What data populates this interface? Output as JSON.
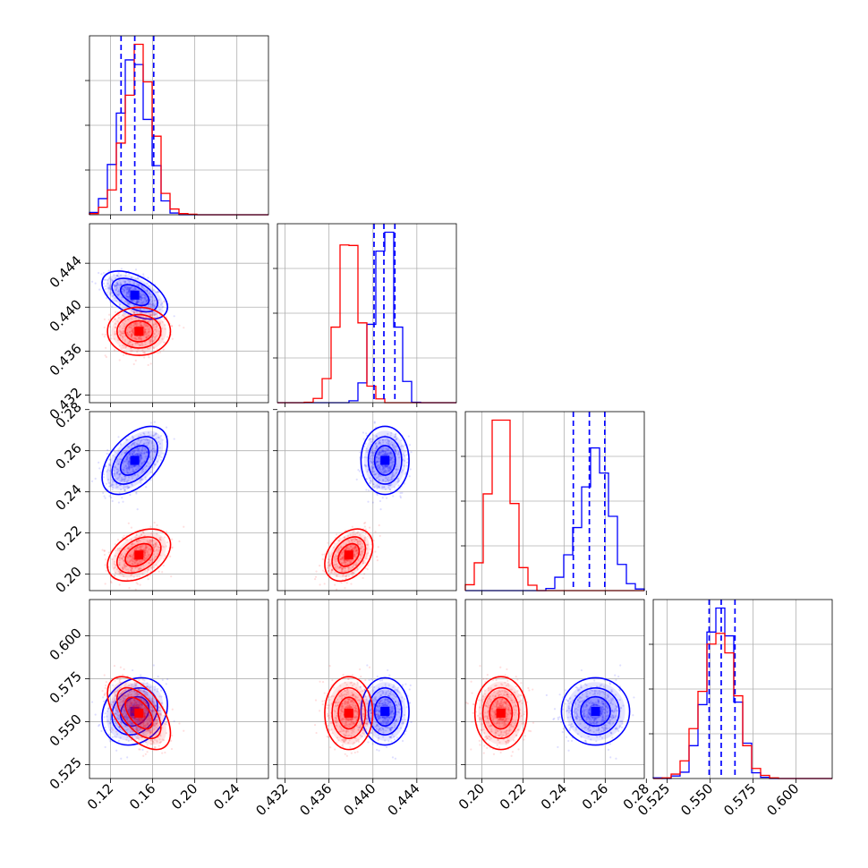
{
  "chart_data": {
    "type": "corner",
    "title": "",
    "grid": true,
    "colors": {
      "blue": "#0000ff",
      "red": "#ff0000"
    },
    "parameters": [
      {
        "range": [
          0.1,
          0.27
        ],
        "ticks": [
          0.12,
          0.16,
          0.2,
          0.24
        ],
        "tick_labels": [
          "0.12",
          "0.16",
          "0.20",
          "0.24"
        ]
      },
      {
        "range": [
          0.4313,
          0.4476
        ],
        "ticks": [
          0.432,
          0.436,
          0.44,
          0.444
        ],
        "tick_labels": [
          "0.432",
          "0.436",
          "0.440",
          "0.444"
        ]
      },
      {
        "range": [
          0.192,
          0.279
        ],
        "ticks": [
          0.2,
          0.22,
          0.24,
          0.26,
          0.28
        ],
        "tick_labels": [
          "0.20",
          "0.22",
          "0.24",
          "0.26",
          "0.28"
        ]
      },
      {
        "range": [
          0.517,
          0.621
        ],
        "ticks": [
          0.525,
          0.55,
          0.575,
          0.6
        ],
        "tick_labels": [
          "0.525",
          "0.550",
          "0.575",
          "0.600"
        ]
      }
    ],
    "series": [
      {
        "color": "blue",
        "mean": [
          0.143,
          0.4411,
          0.2553,
          0.556
        ],
        "sigma": [
          0.0135,
          0.00095,
          0.0072,
          0.0085
        ],
        "corr": [
          [
            1,
            -0.5,
            0.5,
            0.2
          ],
          [
            -0.5,
            1,
            0,
            0
          ],
          [
            0.5,
            0,
            1,
            0
          ],
          [
            0.2,
            0,
            0,
            1
          ]
        ],
        "quantiles": [
          [
            0.13,
            0.143,
            0.161
          ],
          [
            0.4401,
            0.441,
            0.442
          ],
          [
            0.2445,
            0.2523,
            0.2598
          ],
          [
            0.5495,
            0.5565,
            0.5645
          ]
        ]
      },
      {
        "color": "red",
        "mean": [
          0.147,
          0.4378,
          0.2093,
          0.555
        ],
        "sigma": [
          0.013,
          0.00095,
          0.0055,
          0.0092
        ],
        "corr": [
          [
            1,
            0,
            0.4,
            -0.55
          ],
          [
            0,
            1,
            0.35,
            0
          ],
          [
            0.4,
            0.35,
            1,
            0
          ],
          [
            -0.55,
            0,
            0,
            1
          ]
        ]
      }
    ]
  }
}
